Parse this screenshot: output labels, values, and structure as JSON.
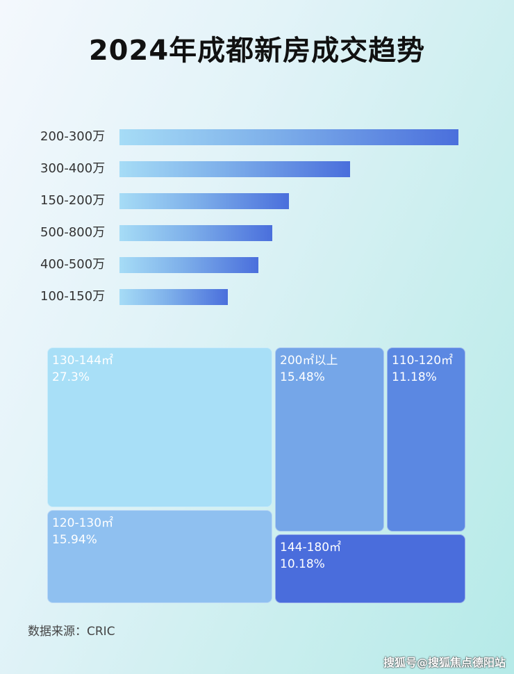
{
  "chart_data": [
    {
      "type": "bar",
      "orientation": "horizontal",
      "title": "2024年成都新房成交趋势",
      "categories": [
        "200-300万",
        "300-400万",
        "150-200万",
        "500-800万",
        "400-500万",
        "100-150万"
      ],
      "values": [
        100,
        68,
        50,
        45,
        41,
        32
      ],
      "value_note": "relative bar lengths; no values printed",
      "grid": false,
      "colors": [
        "#a6dcf6",
        "#4a6fdc"
      ]
    },
    {
      "type": "treemap",
      "items": [
        {
          "label": "130-144㎡",
          "value": "27.3%",
          "color": "#a8dff7"
        },
        {
          "label": "120-130㎡",
          "value": "15.94%",
          "color": "#8fc0f0"
        },
        {
          "label": "200㎡以上",
          "value": "15.48%",
          "color": "#75a6e8"
        },
        {
          "label": "110-120㎡",
          "value": "11.18%",
          "color": "#5b88e2"
        },
        {
          "label": "144-180㎡",
          "value": "10.18%",
          "color": "#4a6ddc"
        }
      ]
    }
  ],
  "source": "数据来源：CRIC",
  "watermark": "搜狐号@搜狐焦点德阳站"
}
